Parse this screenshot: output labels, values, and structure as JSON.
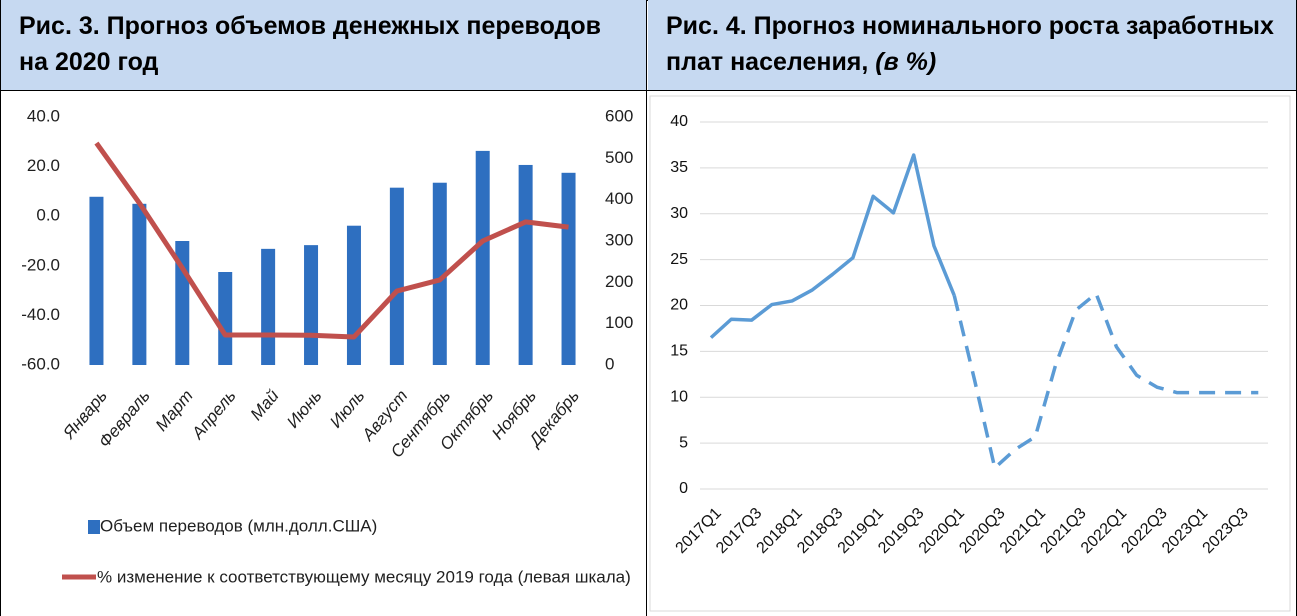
{
  "chart_data": [
    {
      "type": "combo",
      "title": "Рис. 3. Прогноз объемов денежных переводов на 2020 год",
      "categories": [
        "Январь",
        "Февраль",
        "Март",
        "Апрель",
        "Май",
        "Июнь",
        "Июль",
        "Август",
        "Сентябрь",
        "Октябрь",
        "Ноябрь",
        "Декабрь"
      ],
      "series": [
        {
          "name": "Объем переводов (млн.долл.США)",
          "type": "bar",
          "axis": "y2",
          "color": "#2e6fc0",
          "values": [
            407,
            390,
            300,
            225,
            281,
            290,
            337,
            429,
            441,
            518,
            484,
            465
          ]
        },
        {
          "name": "% изменение к соответствующему месяцу 2019 года (левая шкала)",
          "type": "line",
          "axis": "y",
          "color": "#c0504d",
          "values": [
            29.5,
            5.3,
            -20.9,
            -47.9,
            -47.9,
            -48,
            -48.7,
            -30.2,
            -25.7,
            -10,
            -2.3,
            -4.4
          ]
        }
      ],
      "ylim": [
        -60,
        40
      ],
      "yticks": [
        {
          "value": -60,
          "label": "-60.0"
        },
        {
          "value": -40,
          "label": "-40.0"
        },
        {
          "value": -20,
          "label": "-20.0"
        },
        {
          "value": 0,
          "label": "0.0"
        },
        {
          "value": 20,
          "label": "20.0"
        },
        {
          "value": 40,
          "label": "40.0"
        }
      ],
      "y2lim": [
        0,
        600
      ],
      "y2ticks": [
        0,
        100,
        200,
        300,
        400,
        500,
        600
      ],
      "grid": false
    },
    {
      "type": "line",
      "title": "Рис. 4. Прогноз номинального роста заработных плат населения,",
      "subtitle": "(в %)",
      "categories": [
        "2017Q1",
        null,
        "2017Q3",
        null,
        "2018Q1",
        null,
        "2018Q3",
        null,
        "2019Q1",
        null,
        "2019Q3",
        null,
        "2020Q1",
        null,
        "2020Q3",
        null,
        "2021Q1",
        null,
        "2021Q3",
        null,
        "2022Q1",
        null,
        "2022Q3",
        null,
        "2023Q1",
        null,
        "2023Q3",
        null
      ],
      "series": [
        {
          "color": "#5b9bd5",
          "dashed": false,
          "values": [
            16.5,
            18.5,
            18.4,
            20.1,
            20.5,
            21.7,
            23.4,
            25.2,
            31.9,
            30.1,
            36.4,
            26.5,
            21.1,
            null,
            null,
            null,
            null,
            null,
            null,
            null,
            null,
            null,
            null,
            null,
            null,
            null,
            null,
            null
          ]
        },
        {
          "color": "#5b9bd5",
          "dashed": true,
          "values": [
            null,
            null,
            null,
            null,
            null,
            null,
            null,
            null,
            null,
            null,
            null,
            null,
            21.1,
            11.9,
            2.3,
            4.3,
            5.7,
            13.5,
            19.5,
            21.3,
            15.5,
            12.4,
            11.1,
            10.5,
            10.5,
            10.5,
            10.5,
            10.5
          ]
        }
      ],
      "ylim": [
        0,
        40
      ],
      "yticks": [
        0,
        5,
        10,
        15,
        20,
        25,
        30,
        35,
        40
      ],
      "grid": true
    }
  ]
}
